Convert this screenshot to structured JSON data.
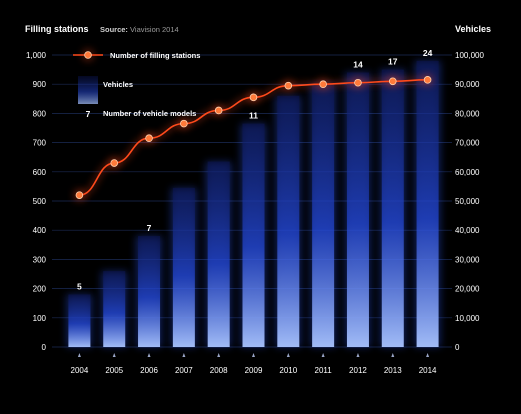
{
  "header": {
    "left_title": "Filling stations",
    "source_label": "Source:",
    "source_value": "Viavision 2014",
    "right_title": "Vehicles"
  },
  "chart_data": {
    "type": "bar",
    "categories": [
      "2004",
      "2005",
      "2006",
      "2007",
      "2008",
      "2009",
      "2010",
      "2011",
      "2012",
      "2013",
      "2014"
    ],
    "series": [
      {
        "name": "Vehicles",
        "kind": "bar",
        "axis": "right",
        "values": [
          18000,
          26000,
          38000,
          54500,
          63500,
          76500,
          86000,
          90000,
          94000,
          95000,
          98000
        ]
      },
      {
        "name": "Number of filling stations",
        "kind": "line",
        "axis": "left",
        "values": [
          520,
          630,
          715,
          765,
          810,
          855,
          895,
          900,
          905,
          910,
          915
        ]
      }
    ],
    "model_counts": [
      {
        "category": "2004",
        "label": "5"
      },
      {
        "category": "2006",
        "label": "7"
      },
      {
        "category": "2009",
        "label": "11"
      },
      {
        "category": "2012",
        "label": "14"
      },
      {
        "category": "2013",
        "label": "17"
      },
      {
        "category": "2014",
        "label": "24"
      }
    ],
    "legend": {
      "stations": "Number of filling stations",
      "vehicles": "Vehicles",
      "models_number": "7",
      "models_text": "Number of vehicle models"
    },
    "y_left": {
      "ylim": [
        0,
        1000
      ],
      "ticks": [
        "0",
        "100",
        "200",
        "300",
        "400",
        "500",
        "600",
        "700",
        "800",
        "900",
        "1,000"
      ]
    },
    "y_right": {
      "ylim": [
        0,
        100000
      ],
      "ticks": [
        "0",
        "10,000",
        "20,000",
        "30,000",
        "40,000",
        "50,000",
        "60,000",
        "70,000",
        "80,000",
        "90,000",
        "100,000"
      ]
    },
    "grid": true,
    "colors": {
      "bar_glow": "#2f5bff",
      "line": "#ff4a1c",
      "marker": "#ff7a3a",
      "grid": "#1b2a55"
    }
  }
}
